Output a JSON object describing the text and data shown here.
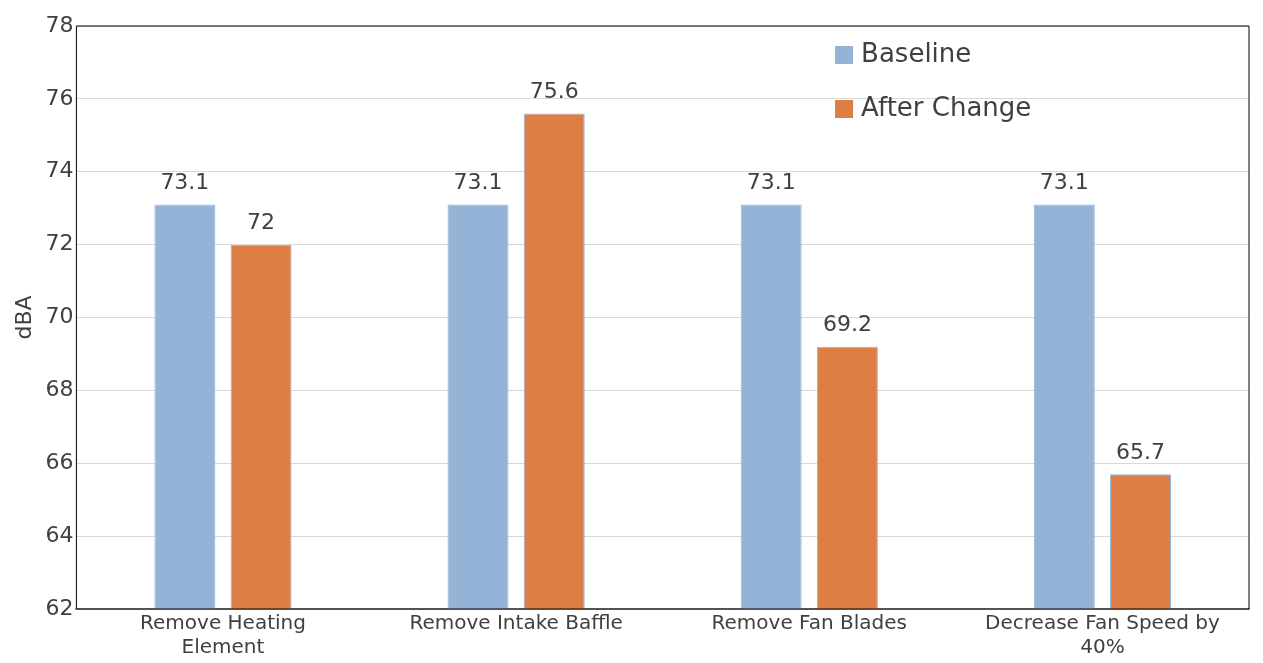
{
  "chart_data": {
    "type": "bar",
    "ylabel": "dBA",
    "categories": [
      "Remove Heating Element",
      "Remove Intake Baffle",
      "Remove Fan Blades",
      "Decrease Fan Speed by 40%"
    ],
    "series": [
      {
        "name": "Baseline",
        "color": "#95b3d7",
        "values": [
          73.1,
          73.1,
          73.1,
          73.1
        ]
      },
      {
        "name": "After Change",
        "color": "#dd7f45",
        "values": [
          72,
          75.6,
          69.2,
          65.7
        ]
      }
    ],
    "ylim": [
      62,
      78
    ],
    "yticks": [
      62,
      64,
      66,
      68,
      70,
      72,
      74,
      76,
      78
    ],
    "grid": "y",
    "legend": "top right",
    "data_labels": true
  }
}
